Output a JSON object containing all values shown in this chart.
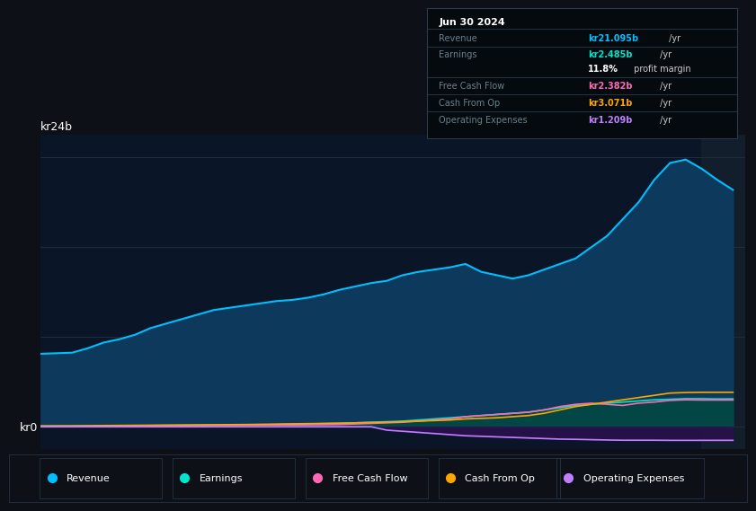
{
  "bg_color": "#0d1117",
  "chart_bg": "#0a1628",
  "ylabel_top": "kr24b",
  "ylabel_bottom": "kr0",
  "info_box_bg": "#050a0f",
  "info_box_border": "#2a3a4a",
  "info_date": "Jun 30 2024",
  "info_rows": [
    {
      "label": "Revenue",
      "val": "kr21.095b",
      "suffix": " /yr",
      "val_color": "#00bfff",
      "has_line": true
    },
    {
      "label": "Earnings",
      "val": "kr2.485b",
      "suffix": " /yr",
      "val_color": "#00e5cc",
      "has_line": false
    },
    {
      "label": "",
      "val": "11.8%",
      "suffix": " profit margin",
      "val_color": "#ffffff",
      "has_line": true
    },
    {
      "label": "Free Cash Flow",
      "val": "kr2.382b",
      "suffix": " /yr",
      "val_color": "#ff69b4",
      "has_line": true
    },
    {
      "label": "Cash From Op",
      "val": "kr3.071b",
      "suffix": " /yr",
      "val_color": "#ffa500",
      "has_line": true
    },
    {
      "label": "Operating Expenses",
      "val": "kr1.209b",
      "suffix": " /yr",
      "val_color": "#c07fff",
      "has_line": false
    }
  ],
  "years": [
    2013.5,
    2014.0,
    2014.25,
    2014.5,
    2014.75,
    2015.0,
    2015.25,
    2015.5,
    2015.75,
    2016.0,
    2016.25,
    2016.5,
    2016.75,
    2017.0,
    2017.25,
    2017.5,
    2017.75,
    2018.0,
    2018.25,
    2018.5,
    2018.75,
    2019.0,
    2019.25,
    2019.5,
    2019.75,
    2020.0,
    2020.25,
    2020.5,
    2020.75,
    2021.0,
    2021.25,
    2021.5,
    2021.75,
    2022.0,
    2022.25,
    2022.5,
    2022.75,
    2023.0,
    2023.25,
    2023.5,
    2023.75,
    2024.0,
    2024.25,
    2024.5
  ],
  "revenue": [
    6.5,
    6.6,
    7.0,
    7.5,
    7.8,
    8.2,
    8.8,
    9.2,
    9.6,
    10.0,
    10.4,
    10.6,
    10.8,
    11.0,
    11.2,
    11.3,
    11.5,
    11.8,
    12.2,
    12.5,
    12.8,
    13.0,
    13.5,
    13.8,
    14.0,
    14.2,
    14.5,
    13.8,
    13.5,
    13.2,
    13.5,
    14.0,
    14.5,
    15.0,
    16.0,
    17.0,
    18.5,
    20.0,
    22.0,
    23.5,
    23.8,
    23.0,
    22.0,
    21.1
  ],
  "earnings": [
    0.05,
    0.05,
    0.07,
    0.08,
    0.09,
    0.1,
    0.11,
    0.12,
    0.13,
    0.14,
    0.15,
    0.16,
    0.17,
    0.18,
    0.2,
    0.22,
    0.25,
    0.28,
    0.3,
    0.35,
    0.4,
    0.45,
    0.5,
    0.6,
    0.7,
    0.8,
    0.9,
    1.0,
    1.1,
    1.2,
    1.3,
    1.5,
    1.7,
    1.9,
    2.0,
    2.1,
    2.2,
    2.3,
    2.4,
    2.45,
    2.5,
    2.5,
    2.48,
    2.485
  ],
  "fcf": [
    0.02,
    0.02,
    0.03,
    0.04,
    0.05,
    0.06,
    0.07,
    0.08,
    0.09,
    0.1,
    0.11,
    0.12,
    0.13,
    0.14,
    0.15,
    0.16,
    0.17,
    0.18,
    0.2,
    0.25,
    0.3,
    0.35,
    0.4,
    0.5,
    0.6,
    0.7,
    0.9,
    1.0,
    1.1,
    1.2,
    1.3,
    1.5,
    1.8,
    2.0,
    2.1,
    2.0,
    1.9,
    2.1,
    2.2,
    2.35,
    2.4,
    2.38,
    2.38,
    2.382
  ],
  "cashop": [
    0.08,
    0.09,
    0.1,
    0.11,
    0.12,
    0.13,
    0.14,
    0.15,
    0.16,
    0.17,
    0.18,
    0.19,
    0.2,
    0.22,
    0.24,
    0.26,
    0.28,
    0.3,
    0.32,
    0.35,
    0.38,
    0.4,
    0.45,
    0.5,
    0.55,
    0.6,
    0.7,
    0.75,
    0.8,
    0.9,
    1.0,
    1.2,
    1.5,
    1.8,
    2.0,
    2.2,
    2.4,
    2.6,
    2.8,
    3.0,
    3.05,
    3.07,
    3.07,
    3.071
  ],
  "opex": [
    0.0,
    0.0,
    0.0,
    0.0,
    0.0,
    0.0,
    0.0,
    0.0,
    0.0,
    0.0,
    0.0,
    0.0,
    0.0,
    0.0,
    0.0,
    0.0,
    0.0,
    0.0,
    0.0,
    0.0,
    0.0,
    -0.3,
    -0.4,
    -0.5,
    -0.6,
    -0.7,
    -0.8,
    -0.85,
    -0.9,
    -0.95,
    -1.0,
    -1.05,
    -1.1,
    -1.12,
    -1.15,
    -1.18,
    -1.2,
    -1.2,
    -1.2,
    -1.21,
    -1.21,
    -1.21,
    -1.209,
    -1.209
  ],
  "revenue_color": "#00bfff",
  "revenue_fill": "#0d3a5c",
  "earnings_color": "#00e5cc",
  "earnings_fill": "#004a40",
  "fcf_color": "#ff69b4",
  "cashop_color": "#ffa500",
  "opex_color": "#c07fff",
  "opex_fill": "#2d1050",
  "grid_color": "#1e2e3e",
  "text_color": "#6a7f8a",
  "highlight_x": 2024.0,
  "highlight_color": "#131e2d",
  "xlim_start": 2013.5,
  "xlim_end": 2024.7,
  "ylim_min": -2.0,
  "ylim_max": 26.0,
  "xticks": [
    2014,
    2015,
    2016,
    2017,
    2018,
    2019,
    2020,
    2021,
    2022,
    2023,
    2024
  ],
  "yticks": [
    0,
    8,
    16,
    24
  ],
  "legend_items": [
    {
      "label": "Revenue",
      "color": "#00bfff"
    },
    {
      "label": "Earnings",
      "color": "#00e5cc"
    },
    {
      "label": "Free Cash Flow",
      "color": "#ff69b4"
    },
    {
      "label": "Cash From Op",
      "color": "#ffa500"
    },
    {
      "label": "Operating Expenses",
      "color": "#c07fff"
    }
  ]
}
